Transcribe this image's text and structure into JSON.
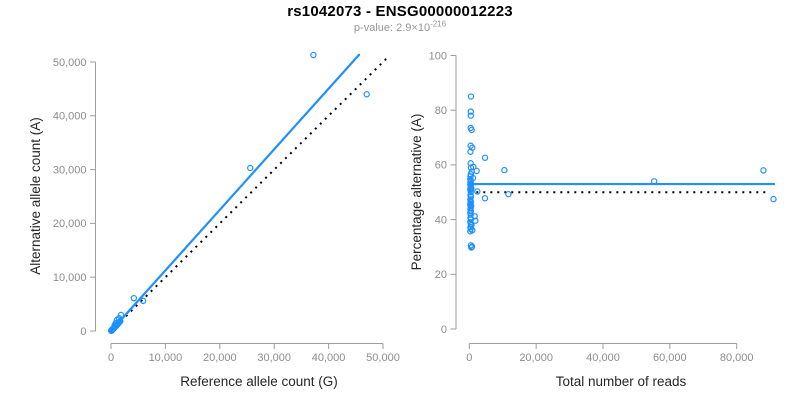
{
  "header": {
    "title": "rs1042073 - ENSG00000012223",
    "p_value_prefix": "p-value: 2.9×10",
    "p_value_exponent": "-216"
  },
  "colors": {
    "accent": "#1E90FF",
    "identity": "#000000",
    "axis": "#9e9e9e",
    "tick_label": "#8c8c8c",
    "axis_label": "#262626",
    "title": "#000000",
    "subtitle": "#969696",
    "background": "#ffffff"
  },
  "chart_data": [
    {
      "id": "left",
      "type": "scatter",
      "title": "",
      "xlabel": "Reference allele count (G)",
      "ylabel": "Alternative allele count (A)",
      "xlim": [
        0,
        50000
      ],
      "ylim": [
        0,
        50000
      ],
      "grid": false,
      "xticks": [
        0,
        10000,
        20000,
        30000,
        40000,
        50000
      ],
      "xtick_labels": [
        "0",
        "10,000",
        "20,000",
        "30,000",
        "40,000",
        "50,000"
      ],
      "yticks": [
        0,
        10000,
        20000,
        30000,
        40000,
        50000
      ],
      "ytick_labels": [
        "0",
        "10,000",
        "20,000",
        "30,000",
        "40,000",
        "50,000"
      ],
      "points": [
        [
          40,
          40
        ],
        [
          70,
          60
        ],
        [
          100,
          90
        ],
        [
          130,
          120
        ],
        [
          160,
          150
        ],
        [
          200,
          185
        ],
        [
          240,
          225
        ],
        [
          280,
          265
        ],
        [
          320,
          300
        ],
        [
          360,
          345
        ],
        [
          400,
          390
        ],
        [
          450,
          440
        ],
        [
          500,
          490
        ],
        [
          550,
          545
        ],
        [
          600,
          600
        ],
        [
          660,
          665
        ],
        [
          720,
          730
        ],
        [
          790,
          805
        ],
        [
          860,
          880
        ],
        [
          930,
          960
        ],
        [
          1010,
          1050
        ],
        [
          1100,
          1150
        ],
        [
          1200,
          1260
        ],
        [
          1300,
          1380
        ],
        [
          1420,
          1520
        ],
        [
          1550,
          1670
        ],
        [
          1700,
          1840
        ],
        [
          1100,
          2050
        ],
        [
          1470,
          2400
        ],
        [
          900,
          1500
        ],
        [
          700,
          1150
        ],
        [
          250,
          300
        ],
        [
          150,
          200
        ],
        [
          500,
          600
        ],
        [
          350,
          420
        ],
        [
          1840,
          2980
        ],
        [
          4200,
          6100
        ],
        [
          5900,
          5600
        ],
        [
          25600,
          30300
        ],
        [
          37200,
          51300
        ],
        [
          47000,
          44000
        ]
      ],
      "lines": [
        {
          "name": "identity-line",
          "style": "dotted",
          "color": "#000000",
          "x": [
            0,
            50800
          ],
          "y": [
            0,
            50800
          ]
        },
        {
          "name": "fit-line",
          "style": "solid",
          "color": "#1E90FF",
          "x": [
            0,
            45600
          ],
          "y": [
            0,
            51350
          ]
        }
      ]
    },
    {
      "id": "right",
      "type": "scatter",
      "title": "",
      "xlabel": "Total number of reads",
      "ylabel": "Percentage alternative (A)",
      "xlim": [
        0,
        80000
      ],
      "ylim": [
        0,
        100
      ],
      "grid": false,
      "xticks": [
        0,
        20000,
        40000,
        60000,
        80000
      ],
      "xtick_labels": [
        "0",
        "20,000",
        "40,000",
        "60,000",
        "80,000"
      ],
      "yticks": [
        0,
        20,
        40,
        60,
        80,
        100
      ],
      "ytick_labels": [
        "0",
        "20",
        "40",
        "60",
        "80",
        "100"
      ],
      "points": [
        [
          500,
          85
        ],
        [
          450,
          79.5
        ],
        [
          450,
          78
        ],
        [
          400,
          73.5
        ],
        [
          700,
          72.8
        ],
        [
          400,
          67
        ],
        [
          900,
          66.3
        ],
        [
          350,
          64.8
        ],
        [
          4700,
          62.6
        ],
        [
          400,
          60.6
        ],
        [
          1200,
          59.3
        ],
        [
          500,
          59
        ],
        [
          10500,
          58.1
        ],
        [
          2200,
          57.8
        ],
        [
          700,
          57.5
        ],
        [
          450,
          56.6
        ],
        [
          350,
          55.8
        ],
        [
          1100,
          55.2
        ],
        [
          300,
          54.8
        ],
        [
          400,
          54.3
        ],
        [
          350,
          53.8
        ],
        [
          500,
          53.3
        ],
        [
          300,
          52.9
        ],
        [
          450,
          52.4
        ],
        [
          400,
          52
        ],
        [
          350,
          51.6
        ],
        [
          600,
          51.2
        ],
        [
          300,
          50.8
        ],
        [
          2400,
          50.3
        ],
        [
          450,
          50
        ],
        [
          11700,
          49.3
        ],
        [
          350,
          48.9
        ],
        [
          500,
          48.4
        ],
        [
          4700,
          47.8
        ],
        [
          300,
          47.4
        ],
        [
          400,
          46.9
        ],
        [
          450,
          46.4
        ],
        [
          350,
          45.9
        ],
        [
          300,
          45.4
        ],
        [
          550,
          44.9
        ],
        [
          400,
          44.3
        ],
        [
          350,
          43.7
        ],
        [
          450,
          43.1
        ],
        [
          300,
          42.5
        ],
        [
          400,
          41.8
        ],
        [
          1600,
          41.2
        ],
        [
          350,
          40.6
        ],
        [
          500,
          40.1
        ],
        [
          1800,
          39.6
        ],
        [
          300,
          39.1
        ],
        [
          450,
          38.5
        ],
        [
          650,
          38
        ],
        [
          350,
          37.3
        ],
        [
          400,
          36.6
        ],
        [
          900,
          36.1
        ],
        [
          300,
          35.7
        ],
        [
          500,
          30.6
        ],
        [
          800,
          30.1
        ],
        [
          600,
          29.8
        ],
        [
          55300,
          54
        ],
        [
          88000,
          58
        ],
        [
          91000,
          47.5
        ]
      ],
      "lines": [
        {
          "name": "identity-line",
          "style": "dotted",
          "color": "#000000",
          "x": [
            0,
            89400
          ],
          "y": [
            50,
            50
          ]
        },
        {
          "name": "fit-line",
          "style": "solid",
          "color": "#1E90FF",
          "x": [
            0,
            91200
          ],
          "y": [
            53,
            53
          ]
        }
      ]
    }
  ]
}
